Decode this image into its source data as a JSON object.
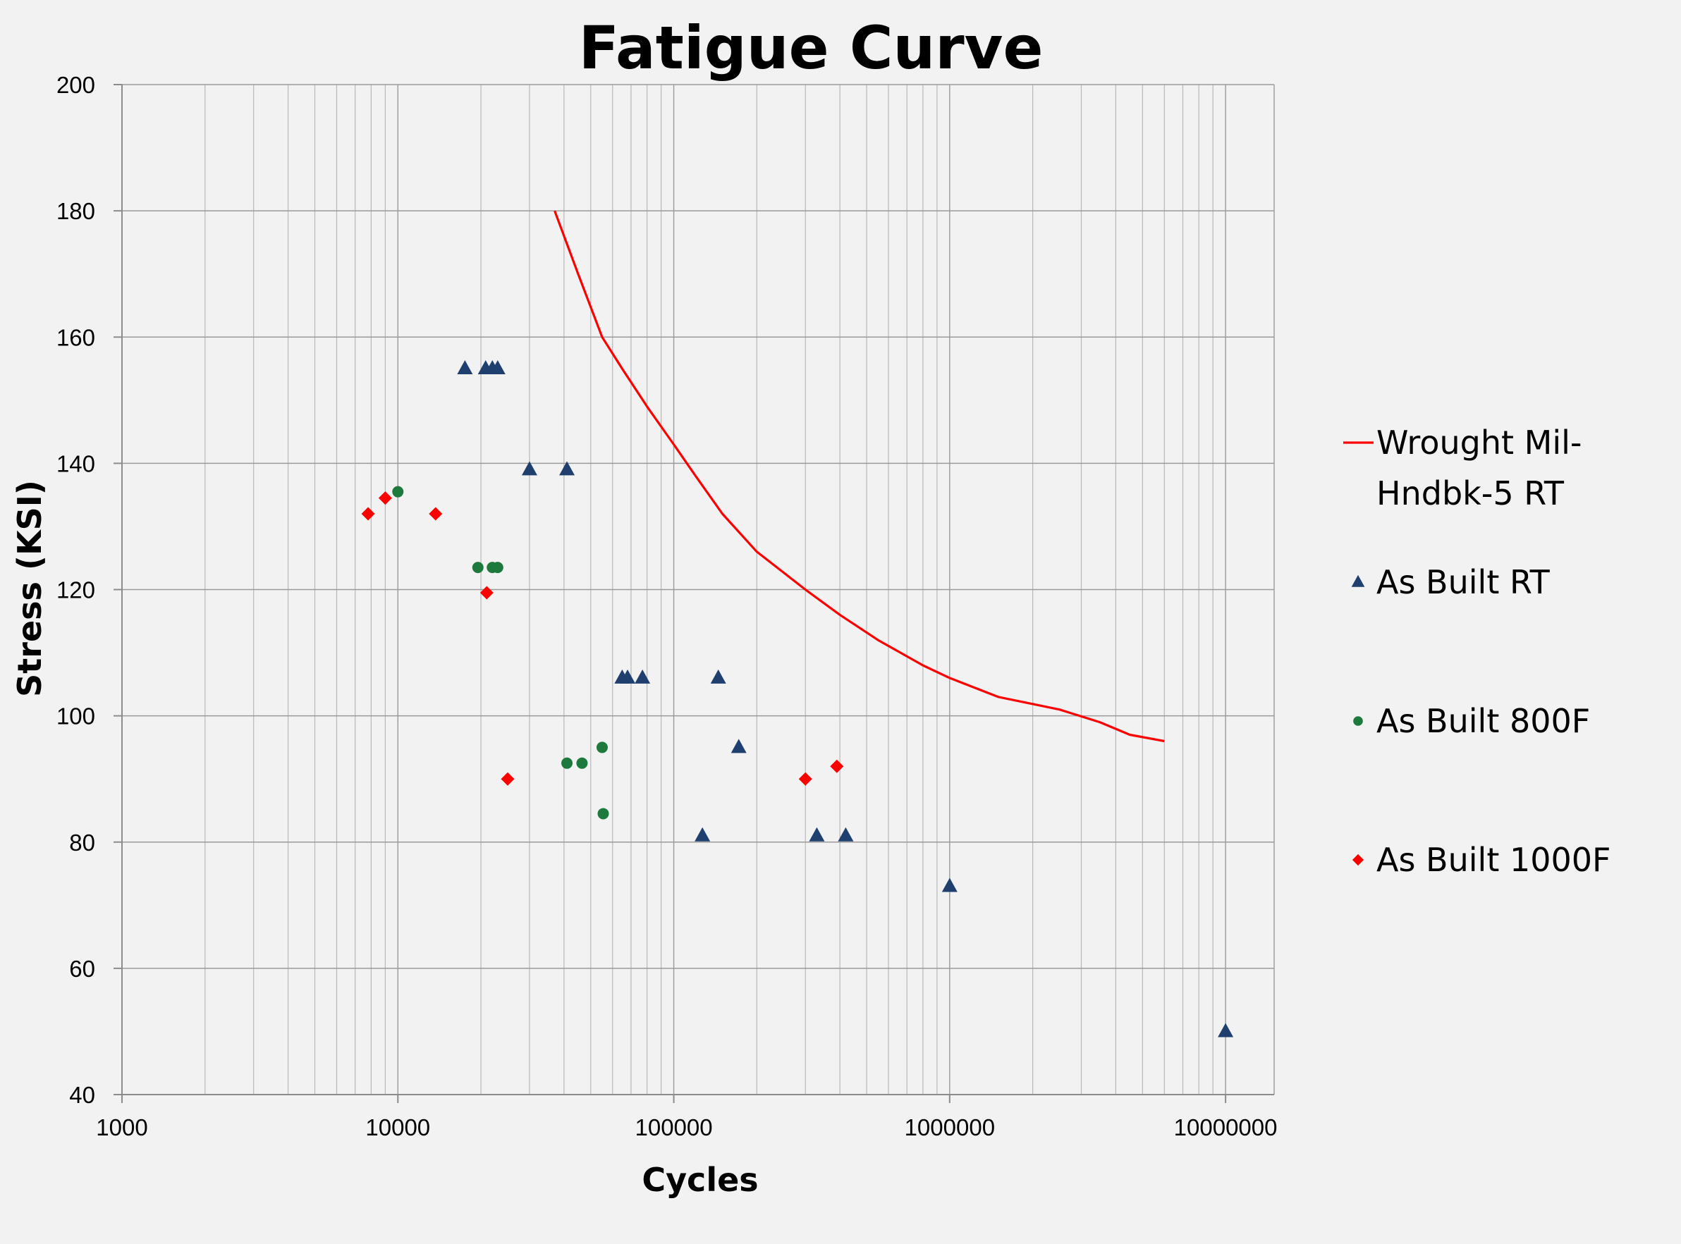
{
  "chart_data": {
    "type": "scatter",
    "title": "Fatigue Curve",
    "xlabel": "Cycles",
    "ylabel": "Stress (KSI)",
    "x_scale": "log",
    "xlim": [
      1000,
      15000000
    ],
    "ylim": [
      40,
      200
    ],
    "x_ticks": [
      1000,
      10000,
      100000,
      1000000,
      10000000
    ],
    "x_tick_labels": [
      "1000",
      "10000",
      "100000",
      "1000000",
      "10000000"
    ],
    "y_ticks": [
      40,
      60,
      80,
      100,
      120,
      140,
      160,
      180,
      200
    ],
    "y_tick_labels": [
      "40",
      "60",
      "80",
      "100",
      "120",
      "140",
      "160",
      "180",
      "200"
    ],
    "grid": true,
    "legend_position": "right",
    "series": [
      {
        "name": "Wrought Mil-Hndbk-5 RT",
        "legend_lines": [
          "Wrought Mil-",
          "Hndbk-5 RT"
        ],
        "kind": "line",
        "color": "#ff0000",
        "x": [
          37000,
          45000,
          55000,
          65000,
          80000,
          100000,
          120000,
          150000,
          200000,
          300000,
          400000,
          550000,
          800000,
          1000000,
          1500000,
          2500000,
          3500000,
          4500000,
          6000000
        ],
        "y": [
          180,
          170,
          160,
          155,
          149,
          143,
          138,
          132,
          126,
          120,
          116,
          112,
          108,
          106,
          103,
          101,
          99,
          97,
          96
        ]
      },
      {
        "name": "As Built RT",
        "kind": "scatter",
        "marker": "triangle",
        "color": "#1f3f6f",
        "x": [
          17500,
          20800,
          22000,
          23000,
          30000,
          41000,
          65000,
          68000,
          77000,
          145000,
          172000,
          127000,
          330000,
          420000,
          1000000,
          10000000
        ],
        "y": [
          155,
          155,
          155,
          155,
          139,
          139,
          106,
          106,
          106,
          106,
          95,
          81,
          81,
          81,
          73,
          50
        ]
      },
      {
        "name": "As Built 800F",
        "kind": "scatter",
        "marker": "circle",
        "color": "#1e7a3c",
        "x": [
          10000,
          19500,
          22000,
          23000,
          41000,
          46500,
          55000,
          55500
        ],
        "y": [
          135.5,
          123.5,
          123.5,
          123.5,
          92.5,
          92.5,
          95,
          84.5
        ]
      },
      {
        "name": "As Built 1000F",
        "kind": "scatter",
        "marker": "diamond",
        "color": "#ff0000",
        "x": [
          7800,
          9000,
          13700,
          21000,
          25000,
          300000,
          390000
        ],
        "y": [
          132,
          134.5,
          132,
          119.5,
          90,
          90,
          92
        ]
      }
    ]
  }
}
